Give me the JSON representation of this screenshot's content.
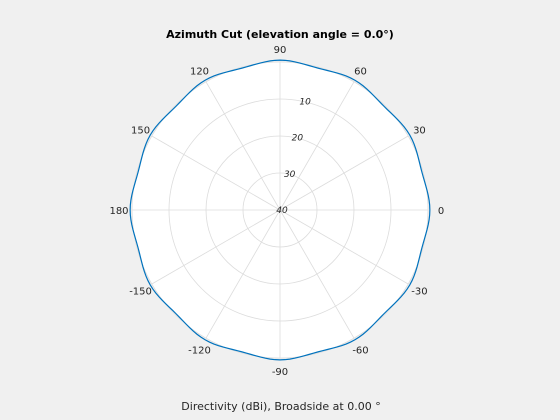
{
  "chart_data": {
    "type": "line",
    "subtype": "polar",
    "title": "Azimuth Cut (elevation angle = 0.0°)",
    "xlabel": "Directivity (dBi), Broadside at 0.00 °",
    "angle_ticks": [
      "0",
      "30",
      "60",
      "90",
      "120",
      "150",
      "180",
      "-150",
      "-120",
      "-90",
      "-60",
      "-30"
    ],
    "angle_tick_values": [
      0,
      30,
      60,
      90,
      120,
      150,
      180,
      -150,
      -120,
      -90,
      -60,
      -30
    ],
    "radial_ticks": [
      "10",
      "20",
      "30",
      "40"
    ],
    "radial_tick_values": [
      10,
      20,
      30,
      40
    ],
    "radial_axis": "reversed",
    "rlim": [
      0,
      40
    ],
    "grid": true,
    "series": [
      {
        "angle_deg": [
          0,
          15,
          30,
          45,
          60,
          75,
          90,
          105,
          120,
          135,
          150,
          165,
          180,
          195,
          210,
          225,
          240,
          255,
          270,
          285,
          300,
          315,
          330,
          345,
          360
        ],
        "r": [
          -0.5,
          0.3,
          -0.5,
          0.3,
          -0.5,
          0.3,
          -0.5,
          0.3,
          -0.5,
          0.3,
          -0.5,
          0.3,
          -0.5,
          0.3,
          -0.5,
          0.3,
          -0.5,
          0.3,
          -0.5,
          0.3,
          -0.5,
          0.3,
          -0.5,
          0.3,
          -0.5
        ]
      }
    ],
    "colors": {
      "series": "#0072bd",
      "grid": "#dcdcdc",
      "background": "#f0f0f0",
      "plot": "#ffffff"
    }
  }
}
